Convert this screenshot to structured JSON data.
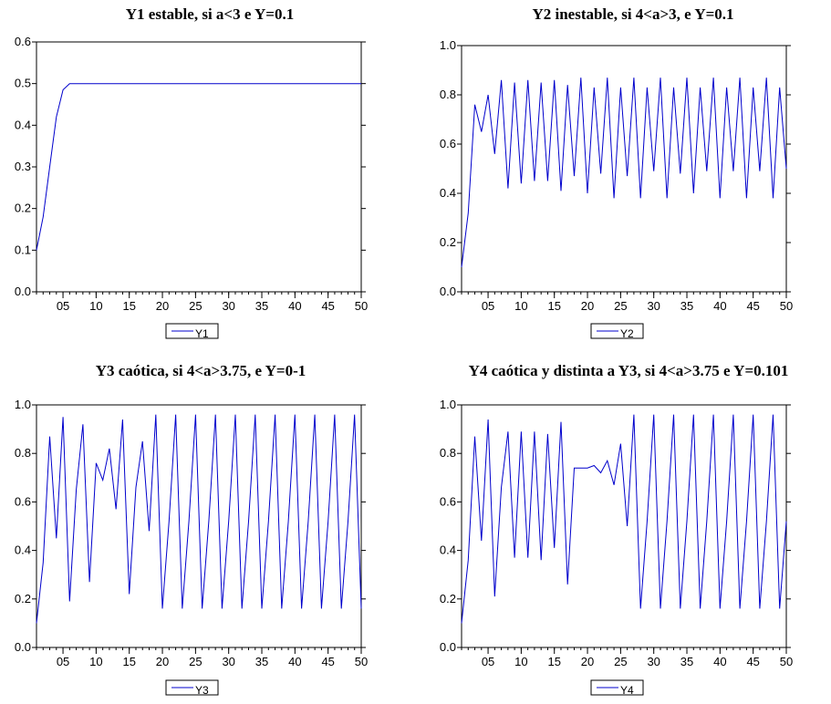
{
  "chart_data": [
    {
      "type": "line",
      "title": "Y1 estable, si a<3 e Y=0.1",
      "xlabel": "",
      "ylabel": "",
      "x": [
        1,
        2,
        3,
        4,
        5,
        6,
        7,
        8,
        9,
        10,
        11,
        12,
        13,
        14,
        15,
        16,
        17,
        18,
        19,
        20,
        21,
        22,
        23,
        24,
        25,
        26,
        27,
        28,
        29,
        30,
        31,
        32,
        33,
        34,
        35,
        36,
        37,
        38,
        39,
        40,
        41,
        42,
        43,
        44,
        45,
        46,
        47,
        48,
        49,
        50
      ],
      "xticks": [
        "05",
        "10",
        "15",
        "20",
        "25",
        "30",
        "35",
        "40",
        "45",
        "50"
      ],
      "xlim": [
        1,
        50
      ],
      "ylim": [
        0,
        0.6
      ],
      "yticks": [
        "0.0",
        "0.1",
        "0.2",
        "0.3",
        "0.4",
        "0.5",
        "0.6"
      ],
      "grid": false,
      "legend": "bottom-center",
      "series": [
        {
          "name": "Y1",
          "color": "#0000cc",
          "values": [
            0.1,
            0.18,
            0.3,
            0.42,
            0.485,
            0.5,
            0.5,
            0.5,
            0.5,
            0.5,
            0.5,
            0.5,
            0.5,
            0.5,
            0.5,
            0.5,
            0.5,
            0.5,
            0.5,
            0.5,
            0.5,
            0.5,
            0.5,
            0.5,
            0.5,
            0.5,
            0.5,
            0.5,
            0.5,
            0.5,
            0.5,
            0.5,
            0.5,
            0.5,
            0.5,
            0.5,
            0.5,
            0.5,
            0.5,
            0.5,
            0.5,
            0.5,
            0.5,
            0.5,
            0.5,
            0.5,
            0.5,
            0.5,
            0.5,
            0.5
          ]
        }
      ]
    },
    {
      "type": "line",
      "title": "Y2 inestable, si 4<a>3, e Y=0.1",
      "xlabel": "",
      "ylabel": "",
      "x": [
        1,
        2,
        3,
        4,
        5,
        6,
        7,
        8,
        9,
        10,
        11,
        12,
        13,
        14,
        15,
        16,
        17,
        18,
        19,
        20,
        21,
        22,
        23,
        24,
        25,
        26,
        27,
        28,
        29,
        30,
        31,
        32,
        33,
        34,
        35,
        36,
        37,
        38,
        39,
        40,
        41,
        42,
        43,
        44,
        45,
        46,
        47,
        48,
        49,
        50
      ],
      "xticks": [
        "05",
        "10",
        "15",
        "20",
        "25",
        "30",
        "35",
        "40",
        "45",
        "50"
      ],
      "xlim": [
        1,
        50
      ],
      "ylim": [
        0,
        1.0
      ],
      "yticks": [
        "0.0",
        "0.2",
        "0.4",
        "0.6",
        "0.8",
        "1.0"
      ],
      "grid": false,
      "legend": "bottom-center",
      "series": [
        {
          "name": "Y2",
          "color": "#0000cc",
          "values": [
            0.1,
            0.32,
            0.76,
            0.65,
            0.8,
            0.56,
            0.86,
            0.42,
            0.85,
            0.44,
            0.86,
            0.45,
            0.85,
            0.45,
            0.86,
            0.41,
            0.84,
            0.47,
            0.87,
            0.4,
            0.83,
            0.48,
            0.87,
            0.38,
            0.83,
            0.47,
            0.87,
            0.38,
            0.83,
            0.49,
            0.87,
            0.38,
            0.83,
            0.48,
            0.87,
            0.4,
            0.83,
            0.49,
            0.87,
            0.38,
            0.83,
            0.49,
            0.87,
            0.38,
            0.83,
            0.49,
            0.87,
            0.38,
            0.83,
            0.5
          ]
        }
      ]
    },
    {
      "type": "line",
      "title": "Y3 caótica, si 4<a>3.75, e Y=0-1",
      "xlabel": "",
      "ylabel": "",
      "x": [
        1,
        2,
        3,
        4,
        5,
        6,
        7,
        8,
        9,
        10,
        11,
        12,
        13,
        14,
        15,
        16,
        17,
        18,
        19,
        20,
        21,
        22,
        23,
        24,
        25,
        26,
        27,
        28,
        29,
        30,
        31,
        32,
        33,
        34,
        35,
        36,
        37,
        38,
        39,
        40,
        41,
        42,
        43,
        44,
        45,
        46,
        47,
        48,
        49,
        50
      ],
      "xticks": [
        "05",
        "10",
        "15",
        "20",
        "25",
        "30",
        "35",
        "40",
        "45",
        "50"
      ],
      "xlim": [
        1,
        50
      ],
      "ylim": [
        0,
        1.0
      ],
      "yticks": [
        "0.0",
        "0.2",
        "0.4",
        "0.6",
        "0.8",
        "1.0"
      ],
      "grid": false,
      "legend": "bottom-center",
      "series": [
        {
          "name": "Y3",
          "color": "#0000cc",
          "values": [
            0.1,
            0.35,
            0.87,
            0.45,
            0.95,
            0.19,
            0.65,
            0.92,
            0.27,
            0.76,
            0.69,
            0.82,
            0.57,
            0.94,
            0.22,
            0.66,
            0.85,
            0.48,
            0.96,
            0.16,
            0.52,
            0.96,
            0.16,
            0.52,
            0.96,
            0.16,
            0.52,
            0.96,
            0.16,
            0.52,
            0.96,
            0.16,
            0.52,
            0.96,
            0.16,
            0.52,
            0.96,
            0.16,
            0.52,
            0.96,
            0.16,
            0.52,
            0.96,
            0.16,
            0.52,
            0.96,
            0.16,
            0.52,
            0.96,
            0.16
          ]
        }
      ]
    },
    {
      "type": "line",
      "title": "Y4 caótica y distinta a Y3, si 4<a>3.75 e Y=0.101",
      "xlabel": "",
      "ylabel": "",
      "x": [
        1,
        2,
        3,
        4,
        5,
        6,
        7,
        8,
        9,
        10,
        11,
        12,
        13,
        14,
        15,
        16,
        17,
        18,
        19,
        20,
        21,
        22,
        23,
        24,
        25,
        26,
        27,
        28,
        29,
        30,
        31,
        32,
        33,
        34,
        35,
        36,
        37,
        38,
        39,
        40,
        41,
        42,
        43,
        44,
        45,
        46,
        47,
        48,
        49,
        50
      ],
      "xticks": [
        "05",
        "10",
        "15",
        "20",
        "25",
        "30",
        "35",
        "40",
        "45",
        "50"
      ],
      "xlim": [
        1,
        50
      ],
      "ylim": [
        0,
        1.0
      ],
      "yticks": [
        "0.0",
        "0.2",
        "0.4",
        "0.6",
        "0.8",
        "1.0"
      ],
      "grid": false,
      "legend": "bottom-center",
      "series": [
        {
          "name": "Y4",
          "color": "#0000cc",
          "values": [
            0.1,
            0.36,
            0.87,
            0.44,
            0.94,
            0.21,
            0.66,
            0.89,
            0.37,
            0.89,
            0.37,
            0.89,
            0.36,
            0.88,
            0.41,
            0.93,
            0.26,
            0.74,
            0.74,
            0.74,
            0.75,
            0.72,
            0.77,
            0.67,
            0.84,
            0.5,
            0.96,
            0.16,
            0.52,
            0.96,
            0.16,
            0.52,
            0.96,
            0.16,
            0.52,
            0.96,
            0.16,
            0.52,
            0.96,
            0.16,
            0.52,
            0.96,
            0.16,
            0.52,
            0.96,
            0.16,
            0.52,
            0.96,
            0.16,
            0.52
          ]
        }
      ]
    }
  ]
}
